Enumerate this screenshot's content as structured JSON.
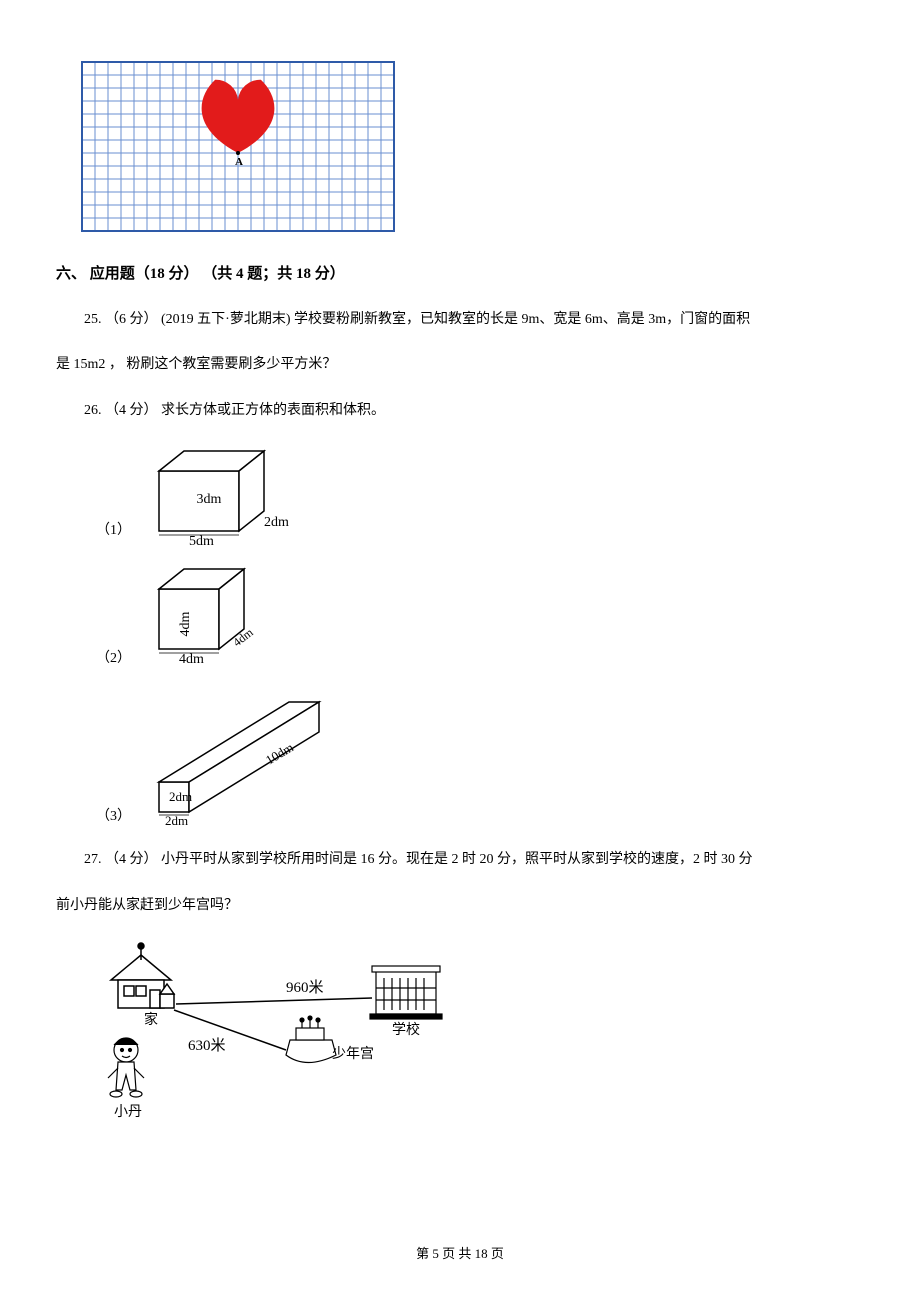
{
  "grid_figure": {
    "cols": 24,
    "rows": 13,
    "cell": 13,
    "border_color": "#2e5aa8",
    "line_color": "#6a8fd0",
    "heart_color": "#e21b1b",
    "point_label": "A",
    "point_col": 12,
    "point_row": 7
  },
  "section": {
    "number": "六、",
    "title": "应用题（18 分） （共 4 题；共 18 分）"
  },
  "q25": {
    "prefix": "25. （6 分） (2019 五下·萝北期末) 学校要粉刷新教室，已知教室的长是 9m、宽是 6m、高是 3m，门窗的面积",
    "line2": "是 15m2 ，  粉刷这个教室需要刷多少平方米？"
  },
  "q26": {
    "text": "26. （4 分）  求长方体或正方体的表面积和体积。",
    "sub1": {
      "label": "（1）",
      "l": "5dm",
      "w": "2dm",
      "h": "3dm"
    },
    "sub2": {
      "label": "（2）",
      "l": "4dm",
      "w": "4dm",
      "h": "4dm"
    },
    "sub3": {
      "label": "（3）",
      "l": "2dm",
      "w": "10dm",
      "h": "2dm"
    }
  },
  "q27": {
    "line1": "27. （4 分）  小丹平时从家到学校所用时间是 16 分。现在是 2 时 20 分，照平时从家到学校的速度，2 时 30 分",
    "line2": "前小丹能从家赶到少年宫吗？",
    "fig": {
      "dist_school": "960米",
      "dist_palace": "630米",
      "label_home": "家",
      "label_school": "学校",
      "label_palace": "少年宫",
      "label_person": "小丹"
    }
  },
  "footer": "第 5 页 共 18 页",
  "colors": {
    "text": "#000000",
    "grid_border": "#2e5aa8",
    "grid_line": "#6a8fd0",
    "heart": "#e21b1b",
    "bg": "#ffffff"
  }
}
